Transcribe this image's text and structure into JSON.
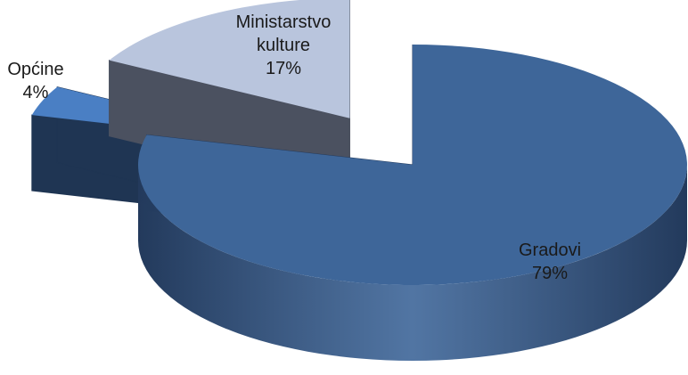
{
  "chart_data": {
    "type": "pie3d",
    "categories": [
      "Gradovi",
      "Općine",
      "Ministarstvo kulture"
    ],
    "values": [
      79,
      4,
      17
    ],
    "value_labels": [
      "79%",
      "4%",
      "17%"
    ],
    "series": [
      {
        "name": "Gradovi",
        "color": "#3e6699"
      },
      {
        "name": "Općine",
        "color": "#4a7fc4"
      },
      {
        "name": "Ministarstvo kulture",
        "color": "#b9c5dd"
      }
    ],
    "side_colors": [
      "#233a5c",
      "#1f3553",
      "#4b5160"
    ]
  }
}
